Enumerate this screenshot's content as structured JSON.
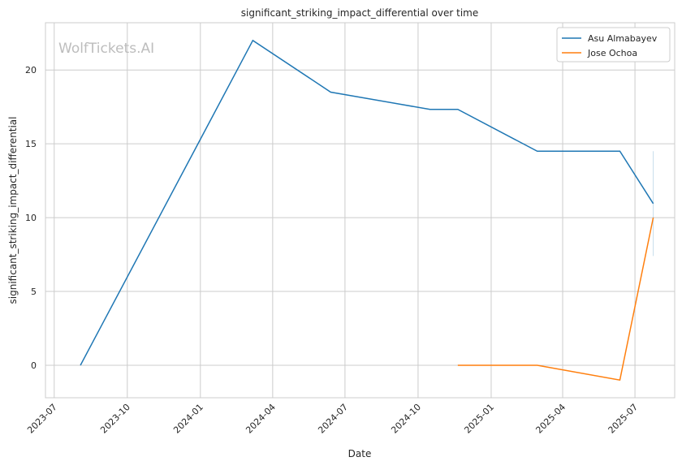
{
  "chart_data": {
    "type": "line",
    "title": "significant_striking_impact_differential over time",
    "xlabel": "Date",
    "ylabel": "significant_striking_impact_differential",
    "watermark": "WolfTickets.AI",
    "x_ticks": [
      "2023-07",
      "2023-10",
      "2024-01",
      "2024-04",
      "2024-07",
      "2024-10",
      "2025-01",
      "2025-04",
      "2025-07"
    ],
    "y_ticks": [
      0,
      5,
      10,
      15,
      20
    ],
    "ylim": [
      -2.2,
      23.2
    ],
    "xlim": [
      "2023-06-20",
      "2025-08-20"
    ],
    "grid": true,
    "legend_position": "top-right",
    "series": [
      {
        "name": "Asu Almabayev",
        "color": "#1f77b4",
        "x": [
          "2023-08-03",
          "2024-03-07",
          "2024-06-13",
          "2024-10-16",
          "2024-11-20",
          "2025-02-28",
          "2025-06-12",
          "2025-07-24"
        ],
        "y": [
          0,
          22,
          18.5,
          17.33,
          17.33,
          14.5,
          14.5,
          10.95
        ],
        "last_point_interval": [
          7.4,
          14.5
        ]
      },
      {
        "name": "Jose Ochoa",
        "color": "#ff7f0e",
        "x": [
          "2024-11-20",
          "2025-02-28",
          "2025-06-12",
          "2025-07-24"
        ],
        "y": [
          0,
          0,
          -1,
          10
        ]
      }
    ]
  }
}
